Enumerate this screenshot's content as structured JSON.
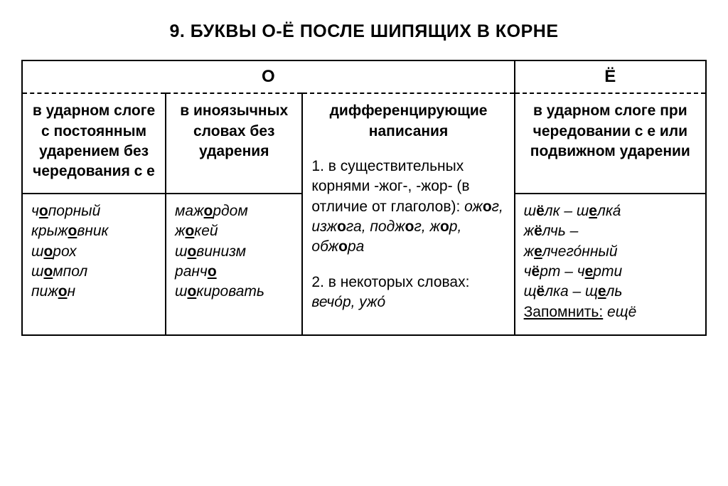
{
  "title": "9. БУКВЫ О-Ё ПОСЛЕ ШИПЯЩИХ В КОРНЕ",
  "groups": {
    "o": "О",
    "yo": "Ё"
  },
  "o_cols": {
    "col1_rule": "в ударном слоге\nс постоянным ударением без чередования с е",
    "col2_rule": "в иноязычных словах без ударения",
    "col3_header": "дифференцирующие написания",
    "col3_body": "1. в существительных корнями -жог-, -жор- (в отличие от глаголов):",
    "col3_ex": "ожог, изжога, под­жог, жор, обжора",
    "col3_body2": "2. в некоторых словах:",
    "col3_ex2": "вечо́р, ужо́"
  },
  "yo_rule": "в ударном слоге при чередовании с е или подвижном ударении",
  "examples": {
    "col1": [
      "ч<o>порный",
      "крыж<o>вник",
      "ш<o>рох",
      "ш<o>мпол",
      "пиж<o>н"
    ],
    "col2": [
      "маж<o>рдом",
      "ж<o>кей",
      "ш<o>винизм",
      "ранч<o>",
      "ш<o>кировать"
    ],
    "col4": [
      "ш<yo>лк – ш<e>лка́",
      "ж<yo>лчь –",
      "ж<e>лчего́нный",
      "ч<yo>рт – ч<e>рти",
      "щ<yo>лка – щ<e>ль"
    ],
    "mem": "Запомнить:",
    "mem_word": "ещё"
  }
}
